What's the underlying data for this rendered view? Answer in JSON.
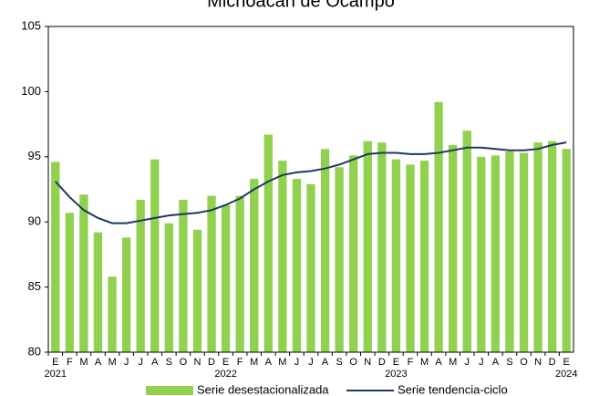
{
  "chart_data": {
    "type": "bar_line",
    "title": "Michoacán de Ocampo",
    "categories": [
      "E",
      "F",
      "M",
      "A",
      "M",
      "J",
      "J",
      "A",
      "S",
      "O",
      "N",
      "D",
      "E",
      "F",
      "M",
      "A",
      "M",
      "J",
      "J",
      "A",
      "S",
      "O",
      "N",
      "D",
      "E",
      "F",
      "M",
      "A",
      "M",
      "J",
      "J",
      "A",
      "S",
      "O",
      "N",
      "D",
      "E"
    ],
    "year_labels": [
      "2021",
      null,
      null,
      null,
      null,
      null,
      null,
      null,
      null,
      null,
      null,
      null,
      "2022",
      null,
      null,
      null,
      null,
      null,
      null,
      null,
      null,
      null,
      null,
      null,
      "2023",
      null,
      null,
      null,
      null,
      null,
      null,
      null,
      null,
      null,
      null,
      null,
      "2024"
    ],
    "series": [
      {
        "name": "Serie desestacionalizada",
        "kind": "bar",
        "color": "#92d050",
        "values": [
          94.6,
          90.7,
          92.1,
          89.2,
          85.8,
          88.8,
          91.7,
          94.8,
          89.9,
          91.7,
          89.4,
          92.0,
          91.3,
          92.0,
          93.3,
          96.7,
          94.7,
          93.3,
          92.9,
          95.6,
          94.2,
          95.1,
          96.2,
          96.1,
          94.8,
          94.4,
          94.7,
          99.2,
          95.9,
          97.0,
          95.0,
          95.1,
          95.4,
          95.3,
          96.1,
          96.2,
          95.6
        ]
      },
      {
        "name": "Serie tendencia-ciclo",
        "kind": "line",
        "color": "#1f3864",
        "values": [
          93.1,
          91.9,
          90.9,
          90.3,
          89.9,
          89.9,
          90.1,
          90.3,
          90.5,
          90.6,
          90.7,
          90.9,
          91.3,
          91.8,
          92.5,
          93.1,
          93.6,
          93.8,
          93.9,
          94.1,
          94.4,
          94.8,
          95.2,
          95.3,
          95.3,
          95.2,
          95.2,
          95.3,
          95.5,
          95.7,
          95.7,
          95.6,
          95.5,
          95.5,
          95.6,
          95.9,
          96.1
        ]
      }
    ],
    "ylim": [
      80,
      105
    ],
    "yticks": [
      80,
      85,
      90,
      95,
      100,
      105
    ]
  }
}
